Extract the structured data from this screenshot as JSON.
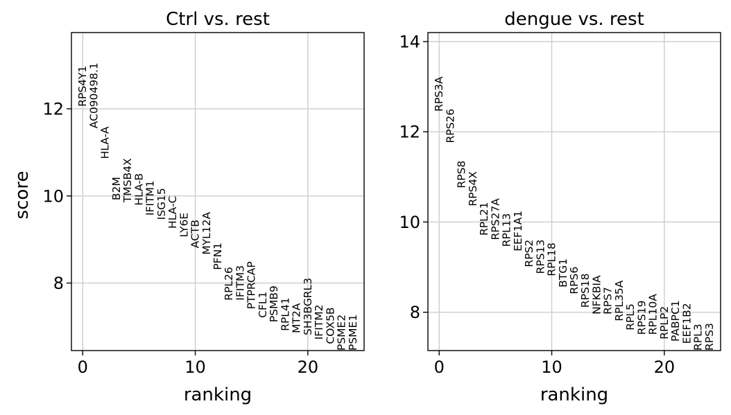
{
  "chart_data": [
    {
      "type": "scatter",
      "title": "Ctrl vs. rest",
      "xlabel": "ranking",
      "ylabel": "score",
      "xlim": [
        -1,
        25
      ],
      "ylim": [
        6.45,
        13.75
      ],
      "xticks": [
        0,
        10,
        20
      ],
      "yticks": [
        8,
        10,
        12
      ],
      "grid": true,
      "genes": [
        "RPS4Y1",
        "AC090498.1",
        "HLA-A",
        "B2M",
        "TMSB4X",
        "HLA-B",
        "IFITM1",
        "ISG15",
        "HLA-C",
        "LY6E",
        "ACTB",
        "MYL12A",
        "PFN1",
        "RPL26",
        "IFITM3",
        "PTPRCAP",
        "CFL1",
        "PSMB9",
        "RPL41",
        "MT2A",
        "SH3BGRL3",
        "IFITM2",
        "COX5B",
        "PSME2",
        "PSME1"
      ],
      "x": [
        0,
        1,
        2,
        3,
        4,
        5,
        6,
        7,
        8,
        9,
        10,
        11,
        12,
        13,
        14,
        15,
        16,
        17,
        18,
        19,
        20,
        21,
        22,
        23,
        24
      ],
      "scores": [
        12.05,
        11.55,
        10.85,
        9.9,
        9.85,
        9.78,
        9.55,
        9.45,
        9.25,
        9.05,
        8.8,
        8.65,
        8.3,
        7.6,
        7.6,
        7.4,
        7.2,
        7.1,
        6.9,
        6.85,
        6.8,
        6.7,
        6.6,
        6.45,
        6.45
      ]
    },
    {
      "type": "scatter",
      "title": "dengue vs. rest",
      "xlabel": "ranking",
      "ylabel": "",
      "xlim": [
        -1,
        25
      ],
      "ylim": [
        7.15,
        14.2
      ],
      "xticks": [
        0,
        10,
        20
      ],
      "yticks": [
        8,
        10,
        12,
        14
      ],
      "grid": true,
      "genes": [
        "RPS3A",
        "RPS26",
        "RPS8",
        "RPS4X",
        "RPL21",
        "RPS27A",
        "RPL13",
        "EEF1A1",
        "RPS2",
        "RPS13",
        "RPL18",
        "BTG1",
        "RPS6",
        "RPS18",
        "NFKBIA",
        "RPS7",
        "RPL35A",
        "RPL5",
        "RPS19",
        "RPL10A",
        "RPLP2",
        "PABPC1",
        "EEF1B2",
        "RPL3",
        "RPS3"
      ],
      "x": [
        0,
        1,
        2,
        3,
        4,
        5,
        6,
        7,
        8,
        9,
        10,
        11,
        12,
        13,
        14,
        15,
        16,
        17,
        18,
        19,
        20,
        21,
        22,
        23,
        24
      ],
      "scores": [
        12.45,
        11.75,
        10.75,
        10.35,
        9.7,
        9.6,
        9.45,
        9.35,
        9.0,
        8.85,
        8.8,
        8.55,
        8.4,
        8.1,
        7.95,
        7.95,
        7.8,
        7.6,
        7.5,
        7.5,
        7.4,
        7.35,
        7.3,
        7.15,
        7.15
      ]
    }
  ]
}
